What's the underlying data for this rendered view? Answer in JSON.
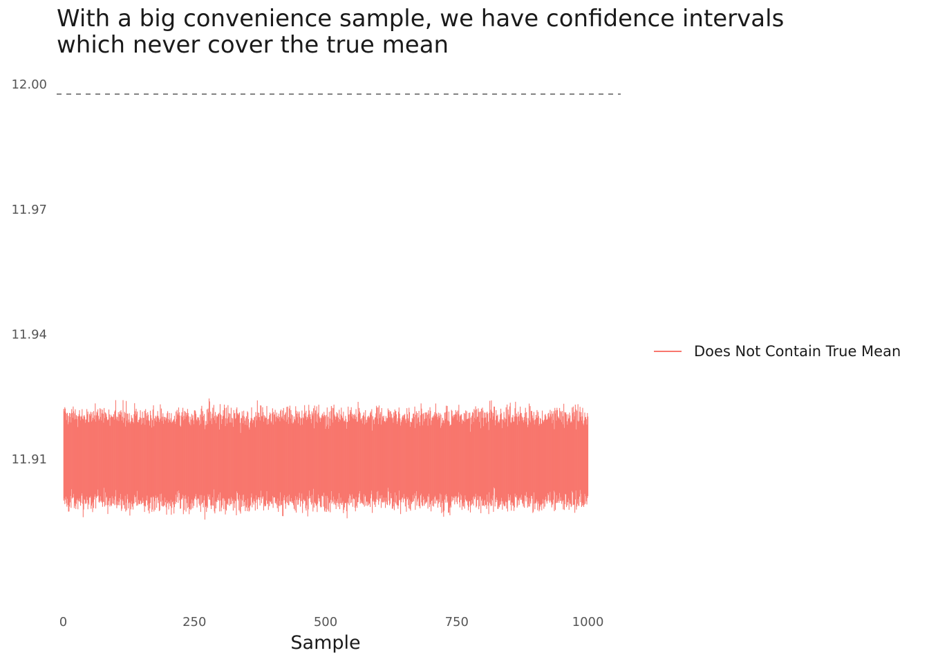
{
  "chart_data": {
    "type": "errorbar",
    "title_lines": [
      "With a big convenience sample, we have confidence intervals",
      "which never cover the true mean"
    ],
    "xlabel": "Sample",
    "ylabel": "",
    "x_ticks": [
      "0",
      "250",
      "500",
      "750",
      "1000"
    ],
    "x_tick_values": [
      0,
      250,
      500,
      750,
      1000
    ],
    "y_ticks": [
      "11.91",
      "11.94",
      "11.97",
      "12.00"
    ],
    "y_tick_values": [
      11.91,
      11.94,
      11.97,
      12.0
    ],
    "xlim": [
      -12.5,
      1062.5
    ],
    "ylim": [
      11.8755,
      12.002
    ],
    "true_mean": 12.0,
    "n_intervals": 1000,
    "interval_center_mean": 11.91,
    "interval_lower_range": [
      11.8955,
      11.9025
    ],
    "interval_upper_range": [
      11.917,
      11.9235
    ],
    "series": [
      {
        "name": "Does Not Contain True Mean",
        "color": "#F8766D"
      }
    ],
    "reference_line": {
      "value": 12.0,
      "style": "dashed",
      "color": "#666666"
    },
    "legend_position": "right",
    "grid": false
  }
}
